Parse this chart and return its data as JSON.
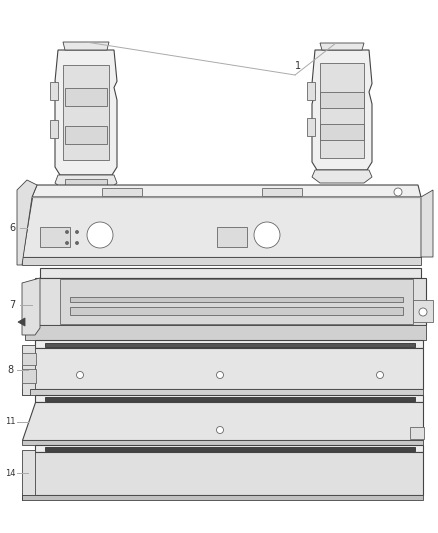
{
  "background_color": "#ffffff",
  "line_color": "#aaaaaa",
  "dark_line": "#666666",
  "darker_line": "#444444",
  "label_color": "#333333",
  "fig_w": 4.38,
  "fig_h": 5.33,
  "dpi": 100
}
